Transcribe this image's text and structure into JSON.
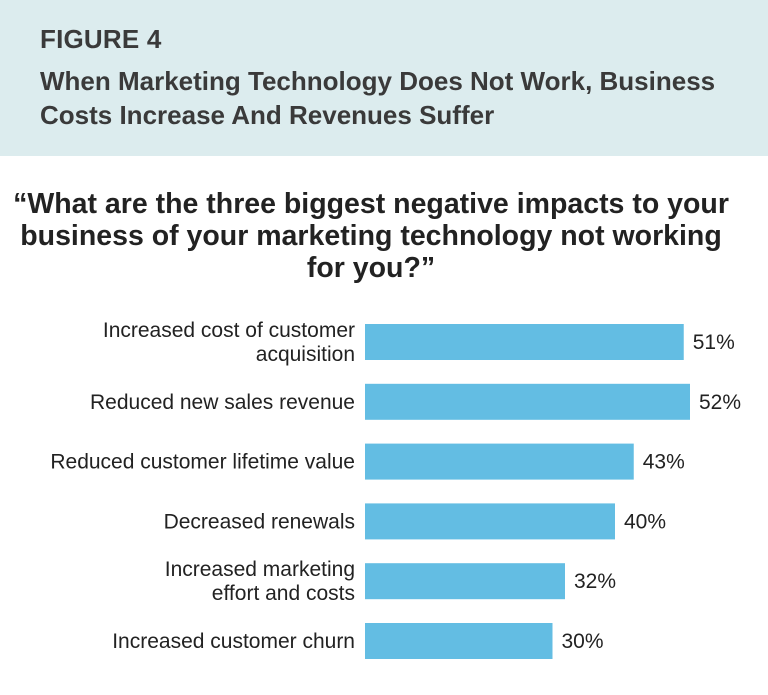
{
  "figure": {
    "label": "FIGURE 4",
    "title": "When Marketing Technology Does Not Work, Business Costs Increase And Revenues Suffer"
  },
  "chart_data": {
    "type": "bar",
    "orientation": "horizontal",
    "title": "“What are the three biggest negative impacts to your business of your marketing technology not working for you?”",
    "categories": [
      "Increased cost of customer acquisition",
      "Reduced new sales revenue",
      "Reduced customer lifetime value",
      "Decreased renewals",
      "Increased marketing effort and costs",
      "Increased customer churn"
    ],
    "category_lines": [
      [
        "Increased cost of customer",
        "acquisition"
      ],
      [
        "Reduced new sales revenue"
      ],
      [
        "Reduced customer lifetime value"
      ],
      [
        "Decreased renewals"
      ],
      [
        "Increased marketing",
        "effort and costs"
      ],
      [
        "Increased customer churn"
      ]
    ],
    "values": [
      51,
      52,
      43,
      40,
      32,
      30
    ],
    "value_labels": [
      "51%",
      "52%",
      "43%",
      "40%",
      "32%",
      "30%"
    ],
    "unit": "%",
    "bar_color": "#63bde3",
    "grid": false,
    "legend": "none"
  },
  "colors": {
    "header_bg": "#dcecee",
    "header_text": "#3a3a3a",
    "bar": "#63bde3"
  }
}
